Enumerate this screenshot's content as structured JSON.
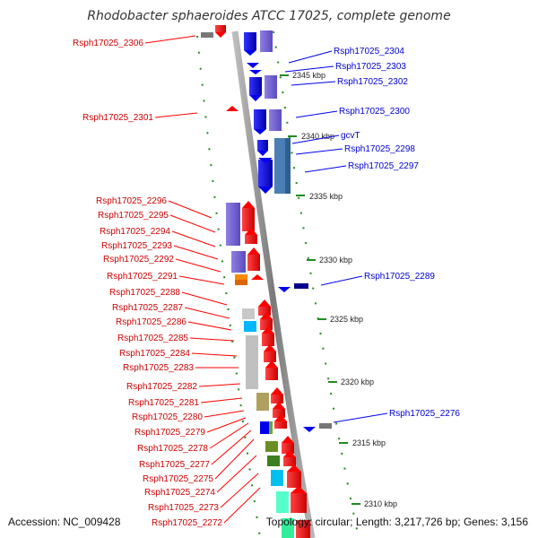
{
  "title": "Rhodobacter sphaeroides ATCC 17025, complete genome",
  "footer": {
    "accession": "Accession: NC_009428",
    "summary": "Topology: circular; Length: 3,217,726 bp; Genes: 3,156"
  },
  "scale_labels": [
    "2345 kbp",
    "2340 kbp",
    "2335 kbp",
    "2330 kbp",
    "2325 kbp",
    "2320 kbp",
    "2315 kbp",
    "2310 kbp"
  ],
  "left_labels": [
    "Rsph17025_2306",
    "Rsph17025_2301",
    "Rsph17025_2296",
    "Rsph17025_2295",
    "Rsph17025_2294",
    "Rsph17025_2293",
    "Rsph17025_2292",
    "Rsph17025_2291",
    "Rsph17025_2288",
    "Rsph17025_2287",
    "Rsph17025_2286",
    "Rsph17025_2285",
    "Rsph17025_2284",
    "Rsph17025_2283",
    "Rsph17025_2282",
    "Rsph17025_2281",
    "Rsph17025_2280",
    "Rsph17025_2279",
    "Rsph17025_2278",
    "Rsph17025_2277",
    "Rsph17025_2275",
    "Rsph17025_2274",
    "Rsph17025_2273",
    "Rsph17025_2272"
  ],
  "right_labels": [
    "Rsph17025_2304",
    "Rsph17025_2303",
    "Rsph17025_2302",
    "Rsph17025_2300",
    "gcvT",
    "Rsph17025_2298",
    "Rsph17025_2297",
    "Rsph17025_2289",
    "Rsph17025_2276"
  ],
  "colors": {
    "forward_cds": "#ff0000",
    "reverse_cds": "#0000ee",
    "forward_label": "#cc0000",
    "reverse_label": "#0000cc",
    "backbone": "#888888",
    "gc_dots": "#228b22"
  }
}
